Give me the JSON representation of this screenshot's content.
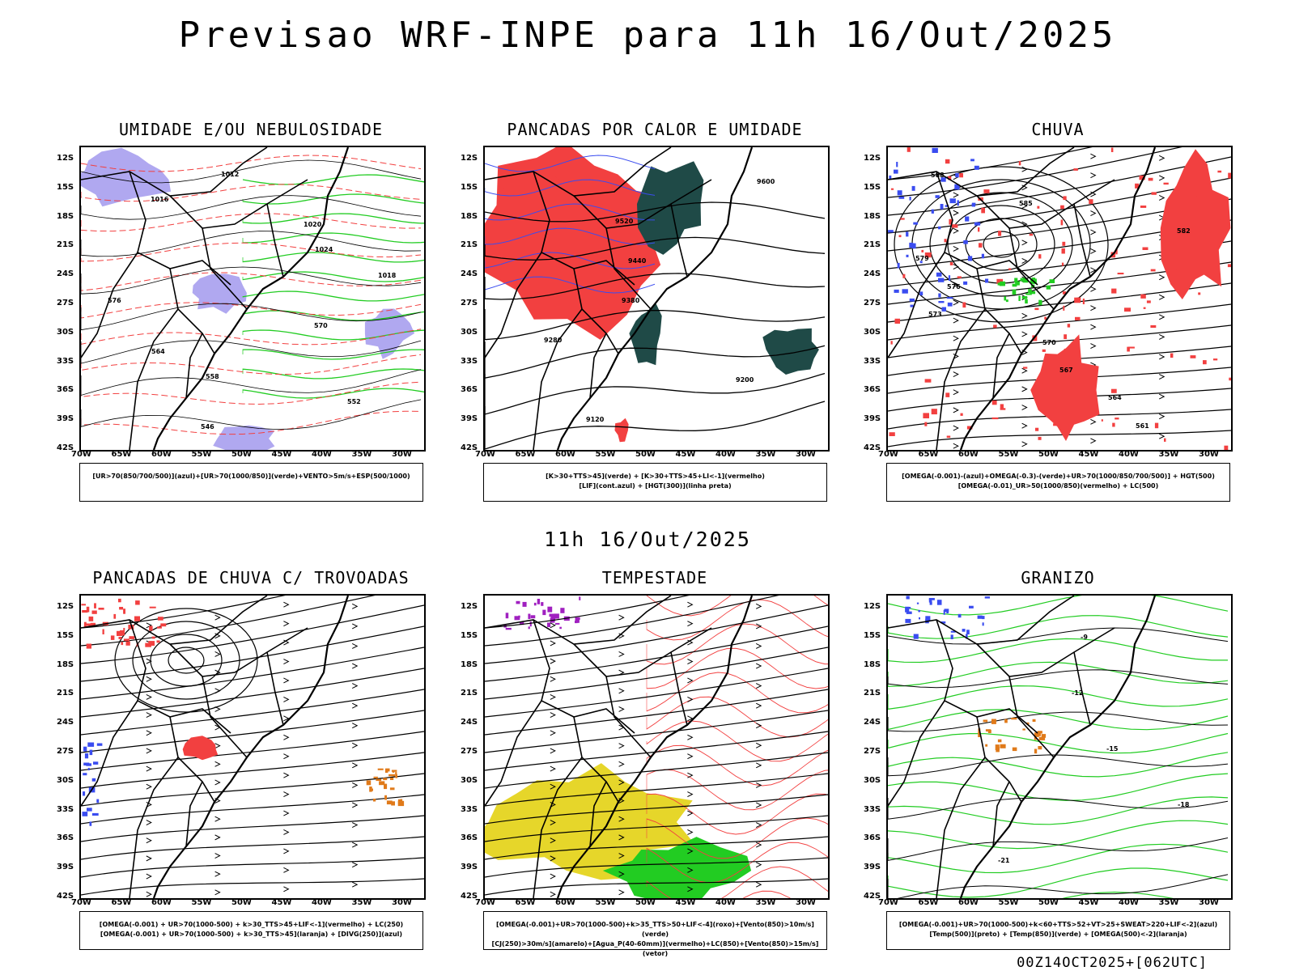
{
  "title": "Previsao WRF-INPE  para 11h 16/Out/2025",
  "mid_label": "11h 16/Out/2025",
  "footer": "00Z14OCT2025+[062UTC]",
  "lat_ticks": [
    "12S",
    "15S",
    "18S",
    "21S",
    "24S",
    "27S",
    "30S",
    "33S",
    "36S",
    "39S",
    "42S"
  ],
  "lon_ticks": [
    "70W",
    "65W",
    "60W",
    "55W",
    "50W",
    "45W",
    "40W",
    "35W",
    "30W"
  ],
  "colors": {
    "blue": "#3a4cf0",
    "green": "#22cc22",
    "red": "#f24040",
    "lavender": "#b0a8f0",
    "darkgreen": "#1f4a47",
    "yellow": "#e6d62a",
    "orange": "#e07a1a",
    "purple": "#a020c0"
  },
  "panels": [
    {
      "title": "UMIDADE E/OU NEBULOSIDADE",
      "legend1": "[UR>70(850/700/500)](azul)+[UR>70(1000/850)](verde)+VENTO>5m/s+ESP(500/1000)",
      "legend2": "",
      "contours": [
        "1012",
        "1016",
        "1020",
        "1024",
        "1018",
        "576",
        "570",
        "564",
        "558",
        "552",
        "546"
      ]
    },
    {
      "title": "PANCADAS POR CALOR E UMIDADE",
      "legend1": "[K>30+TTS>45](verde) + [K>30+TTS>45+LI<-1](vermelho)",
      "legend2": "[LIF](cont.azul) + [HGT(300)](linha preta)",
      "contours": [
        "9600",
        "9520",
        "9440",
        "9380",
        "9280",
        "9200",
        "9120"
      ]
    },
    {
      "title": "CHUVA",
      "legend1": "[OMEGA(-0.001)-(azul)+OMEGA(-0.3)-(verde)+UR>70(1000/850/700/500)] + HGT(500)",
      "legend2": "[OMEGA(-0.01)_UR>50(1000/850)(vermelho) + LC(500)",
      "contours": [
        "588",
        "585",
        "582",
        "579",
        "576",
        "573",
        "570",
        "567",
        "564",
        "561"
      ]
    },
    {
      "title": "PANCADAS DE CHUVA C/ TROVOADAS",
      "legend1": "[OMEGA(-0.001) + UR>70(1000-500) + k>30_TTS>45+LIF<-1](vermelho) + LC(250)",
      "legend2": "[OMEGA(-0.001) + UR>70(1000-500) + k>30_TTS>45](laranja) + [DIVG(250)](azul)",
      "contours": []
    },
    {
      "title": "TEMPESTADE",
      "legend1": "[OMEGA(-0.001)+UR>70(1000-500)+k>35_TTS>50+LIF<-4](roxo)+[Vento(850)>10m/s](verde)",
      "legend2": "[CJ(250)>30m/s](amarelo)+[Agua_P(40-60mm)](vermelho)+LC(850)+[Vento(850)>15m/s](vetor)",
      "contours": []
    },
    {
      "title": "GRANIZO",
      "legend1": "[OMEGA(-0.001)+UR>70(1000-500)+k<60+TTS>52+VT>25+SWEAT>220+LIF<-2](azul)",
      "legend2": "[Temp(500)](preto) + [Temp(850)](verde) + [OMEGA(500)<-2](laranja)",
      "contours": [
        "-9",
        "-12",
        "-15",
        "-18",
        "-21"
      ]
    }
  ]
}
